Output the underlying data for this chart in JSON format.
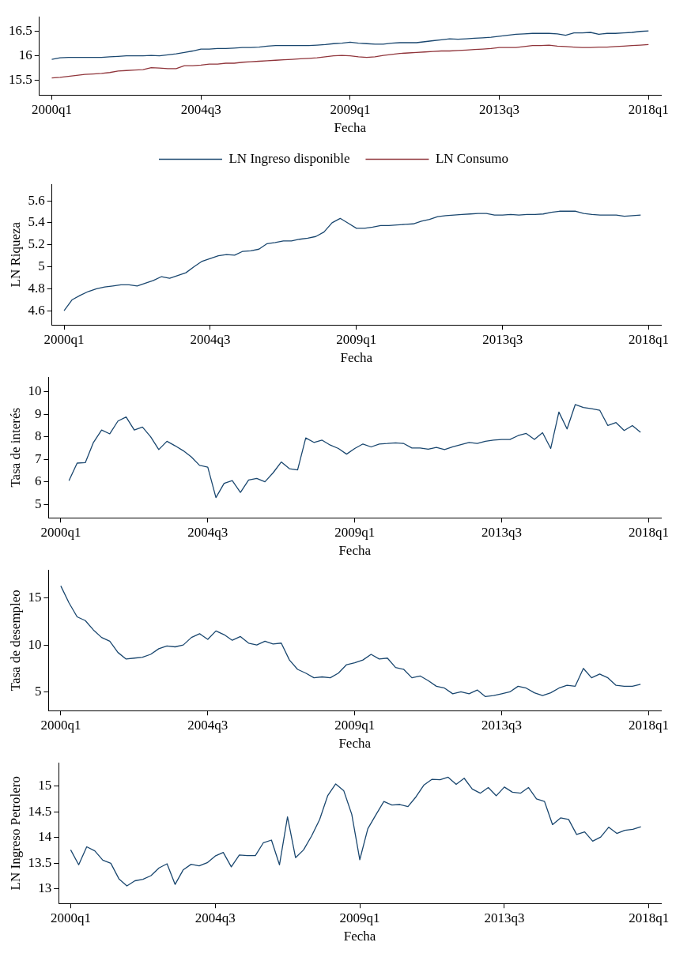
{
  "chart_data": [
    {
      "type": "line",
      "xlabel": "Fecha",
      "categories": [
        "2000q1",
        null,
        null,
        null,
        null,
        null,
        null,
        null,
        null,
        null,
        null,
        null,
        null,
        null,
        null,
        null,
        null,
        null,
        "2004q3",
        null,
        null,
        null,
        null,
        null,
        null,
        null,
        null,
        null,
        null,
        null,
        null,
        null,
        null,
        null,
        null,
        null,
        "2009q1",
        null,
        null,
        null,
        null,
        null,
        null,
        null,
        null,
        null,
        null,
        null,
        null,
        null,
        null,
        null,
        null,
        null,
        "2013q3",
        null,
        null,
        null,
        null,
        null,
        null,
        null,
        null,
        null,
        null,
        null,
        null,
        null,
        null,
        null,
        null,
        null,
        "2018q1"
      ],
      "ylim": [
        15.2,
        16.8
      ],
      "yticks": [
        15.5,
        16,
        16.5
      ],
      "legend": "bottom",
      "series": [
        {
          "name": "LN Ingreso disponible",
          "color": "#1a476f",
          "values": [
            15.93,
            15.96,
            15.97,
            15.97,
            15.97,
            15.97,
            15.97,
            15.98,
            15.99,
            16.0,
            16.0,
            16.0,
            16.01,
            16.0,
            16.02,
            16.04,
            16.07,
            16.1,
            16.14,
            16.14,
            16.15,
            16.15,
            16.16,
            16.17,
            16.17,
            16.18,
            16.2,
            16.21,
            16.21,
            16.21,
            16.21,
            16.21,
            16.22,
            16.23,
            16.25,
            16.26,
            16.28,
            16.26,
            16.25,
            16.24,
            16.24,
            16.26,
            16.27,
            16.27,
            16.27,
            16.29,
            16.31,
            16.33,
            16.35,
            16.34,
            16.35,
            16.36,
            16.37,
            16.38,
            16.4,
            16.42,
            16.44,
            16.45,
            16.46,
            16.46,
            16.46,
            16.45,
            16.42,
            16.47,
            16.47,
            16.48,
            16.44,
            16.46,
            16.46,
            16.47,
            16.48,
            16.5,
            16.51
          ]
        },
        {
          "name": "LN Consumo",
          "color": "#90353b",
          "values": [
            15.55,
            15.56,
            15.58,
            15.6,
            15.62,
            15.63,
            15.64,
            15.66,
            15.69,
            15.7,
            15.71,
            15.72,
            15.76,
            15.75,
            15.74,
            15.74,
            15.8,
            15.8,
            15.81,
            15.83,
            15.83,
            15.85,
            15.85,
            15.87,
            15.88,
            15.89,
            15.9,
            15.91,
            15.92,
            15.93,
            15.94,
            15.95,
            15.96,
            15.98,
            16.0,
            16.01,
            16.0,
            15.98,
            15.97,
            15.98,
            16.01,
            16.03,
            16.05,
            16.06,
            16.07,
            16.08,
            16.09,
            16.1,
            16.1,
            16.11,
            16.12,
            16.13,
            16.14,
            16.15,
            16.17,
            16.17,
            16.17,
            16.19,
            16.21,
            16.21,
            16.22,
            16.2,
            16.19,
            16.18,
            16.17,
            16.17,
            16.18,
            16.18,
            16.19,
            16.2,
            16.21,
            16.22,
            16.23
          ]
        }
      ]
    },
    {
      "type": "line",
      "xlabel": "Fecha",
      "ylabel": "LN Riqueza",
      "categories": [
        "2000q1",
        null,
        null,
        null,
        null,
        null,
        null,
        null,
        null,
        null,
        null,
        null,
        null,
        null,
        null,
        null,
        null,
        null,
        "2004q3",
        null,
        null,
        null,
        null,
        null,
        null,
        null,
        null,
        null,
        null,
        null,
        null,
        null,
        null,
        null,
        null,
        null,
        "2009q1",
        null,
        null,
        null,
        null,
        null,
        null,
        null,
        null,
        null,
        null,
        null,
        null,
        null,
        null,
        null,
        null,
        null,
        "2013q3",
        null,
        null,
        null,
        null,
        null,
        null,
        null,
        null,
        null,
        null,
        null,
        null,
        null,
        null,
        null,
        null,
        null,
        "2018q1"
      ],
      "ylim": [
        4.47,
        5.75
      ],
      "yticks": [
        4.6,
        4.8,
        5,
        5.2,
        5.4,
        5.6
      ],
      "color": "#1a476f",
      "values": [
        4.6,
        4.7,
        4.74,
        4.775,
        4.8,
        4.815,
        4.825,
        4.835,
        4.835,
        4.825,
        4.85,
        4.875,
        4.91,
        4.895,
        4.92,
        4.945,
        5.0,
        5.05,
        5.075,
        5.1,
        5.11,
        5.105,
        5.14,
        5.145,
        5.16,
        5.21,
        5.22,
        5.235,
        5.235,
        5.25,
        5.26,
        5.275,
        5.315,
        5.4,
        5.44,
        5.395,
        5.35,
        5.35,
        5.36,
        5.375,
        5.375,
        5.38,
        5.385,
        5.39,
        5.415,
        5.43,
        5.455,
        5.465,
        5.47,
        5.475,
        5.48,
        5.485,
        5.485,
        5.47,
        5.47,
        5.475,
        5.47,
        5.475,
        5.475,
        5.48,
        5.495,
        5.505,
        5.505,
        5.505,
        5.485,
        5.475,
        5.47,
        5.47,
        5.47,
        5.46,
        5.465,
        5.47,
        null
      ]
    },
    {
      "type": "line",
      "xlabel": "Fecha",
      "ylabel": "Tasa de interés",
      "categories": [
        "2000q1",
        null,
        null,
        null,
        null,
        null,
        null,
        null,
        null,
        null,
        null,
        null,
        null,
        null,
        null,
        null,
        null,
        null,
        "2004q3",
        null,
        null,
        null,
        null,
        null,
        null,
        null,
        null,
        null,
        null,
        null,
        null,
        null,
        null,
        null,
        null,
        null,
        "2009q1",
        null,
        null,
        null,
        null,
        null,
        null,
        null,
        null,
        null,
        null,
        null,
        null,
        null,
        null,
        null,
        null,
        null,
        "2013q3",
        null,
        null,
        null,
        null,
        null,
        null,
        null,
        null,
        null,
        null,
        null,
        null,
        null,
        null,
        null,
        null,
        null,
        "2018q1"
      ],
      "ylim": [
        4.4,
        10.65
      ],
      "yticks": [
        5,
        6,
        7,
        8,
        9,
        10
      ],
      "color": "#1a476f",
      "values": [
        null,
        6.05,
        6.83,
        6.85,
        7.75,
        8.3,
        8.13,
        8.7,
        8.88,
        8.3,
        8.43,
        8.0,
        7.43,
        7.8,
        7.6,
        7.38,
        7.1,
        6.73,
        6.65,
        5.3,
        5.93,
        6.05,
        5.53,
        6.08,
        6.15,
        6.0,
        6.4,
        6.88,
        6.58,
        6.53,
        7.95,
        7.75,
        7.85,
        7.63,
        7.48,
        7.23,
        7.48,
        7.68,
        7.55,
        7.68,
        7.7,
        7.73,
        7.7,
        7.5,
        7.5,
        7.45,
        7.53,
        7.43,
        7.55,
        7.65,
        7.75,
        7.7,
        7.8,
        7.85,
        7.88,
        7.88,
        8.05,
        8.15,
        7.88,
        8.18,
        7.48,
        9.1,
        8.35,
        9.43,
        9.3,
        9.25,
        9.18,
        8.5,
        8.63,
        8.28,
        8.5,
        8.2,
        null
      ]
    },
    {
      "type": "line",
      "xlabel": "Fecha",
      "ylabel": "Tasa de desempleo",
      "categories": [
        "2000q1",
        null,
        null,
        null,
        null,
        null,
        null,
        null,
        null,
        null,
        null,
        null,
        null,
        null,
        null,
        null,
        null,
        null,
        "2004q3",
        null,
        null,
        null,
        null,
        null,
        null,
        null,
        null,
        null,
        null,
        null,
        null,
        null,
        null,
        null,
        null,
        null,
        "2009q1",
        null,
        null,
        null,
        null,
        null,
        null,
        null,
        null,
        null,
        null,
        null,
        null,
        null,
        null,
        null,
        null,
        null,
        "2013q3",
        null,
        null,
        null,
        null,
        null,
        null,
        null,
        null,
        null,
        null,
        null,
        null,
        null,
        null,
        null,
        null,
        null,
        "2018q1"
      ],
      "ylim": [
        3,
        18
      ],
      "yticks": [
        5,
        10,
        15
      ],
      "color": "#1a476f",
      "values": [
        16.3,
        14.5,
        13.0,
        12.6,
        11.6,
        10.8,
        10.4,
        9.2,
        8.5,
        8.6,
        8.7,
        9.0,
        9.6,
        9.9,
        9.8,
        10.0,
        10.8,
        11.2,
        10.6,
        11.5,
        11.1,
        10.5,
        10.9,
        10.2,
        10.0,
        10.4,
        10.1,
        10.2,
        8.4,
        7.4,
        7.0,
        6.5,
        6.6,
        6.5,
        7.0,
        7.9,
        8.1,
        8.4,
        9.0,
        8.5,
        8.6,
        7.6,
        7.4,
        6.5,
        6.7,
        6.2,
        5.6,
        5.4,
        4.8,
        5.0,
        4.8,
        5.2,
        4.5,
        4.6,
        4.8,
        5.0,
        5.6,
        5.4,
        4.9,
        4.6,
        4.9,
        5.4,
        5.7,
        5.6,
        7.5,
        6.5,
        6.9,
        6.5,
        5.7,
        5.6,
        5.6,
        5.8,
        null
      ]
    },
    {
      "type": "line",
      "xlabel": "Fecha",
      "ylabel": "LN Ingreso Petrolero",
      "categories": [
        "2000q1",
        null,
        null,
        null,
        null,
        null,
        null,
        null,
        null,
        null,
        null,
        null,
        null,
        null,
        null,
        null,
        null,
        null,
        "2004q3",
        null,
        null,
        null,
        null,
        null,
        null,
        null,
        null,
        null,
        null,
        null,
        null,
        null,
        null,
        null,
        null,
        null,
        "2009q1",
        null,
        null,
        null,
        null,
        null,
        null,
        null,
        null,
        null,
        null,
        null,
        null,
        null,
        null,
        null,
        null,
        null,
        "2013q3",
        null,
        null,
        null,
        null,
        null,
        null,
        null,
        null,
        null,
        null,
        null,
        null,
        null,
        null,
        null,
        null,
        null,
        "2018q1"
      ],
      "ylim": [
        12.72,
        15.45
      ],
      "yticks": [
        13,
        13.5,
        14,
        14.5,
        15
      ],
      "color": "#1a476f",
      "values": [
        13.76,
        13.47,
        13.82,
        13.74,
        13.56,
        13.5,
        13.2,
        13.06,
        13.16,
        13.19,
        13.26,
        13.41,
        13.49,
        13.09,
        13.37,
        13.48,
        13.45,
        13.51,
        13.64,
        13.71,
        13.43,
        13.66,
        13.65,
        13.65,
        13.9,
        13.95,
        13.47,
        14.4,
        13.61,
        13.76,
        14.03,
        14.35,
        14.81,
        15.04,
        14.91,
        14.45,
        13.57,
        14.17,
        14.44,
        14.7,
        14.63,
        14.64,
        14.6,
        14.79,
        15.02,
        15.13,
        15.12,
        15.17,
        15.03,
        15.15,
        14.94,
        14.86,
        14.97,
        14.81,
        14.98,
        14.88,
        14.86,
        14.97,
        14.75,
        14.7,
        14.25,
        14.38,
        14.35,
        14.06,
        14.11,
        13.93,
        14.01,
        14.2,
        14.08,
        14.14,
        14.16,
        14.21,
        null
      ]
    }
  ]
}
